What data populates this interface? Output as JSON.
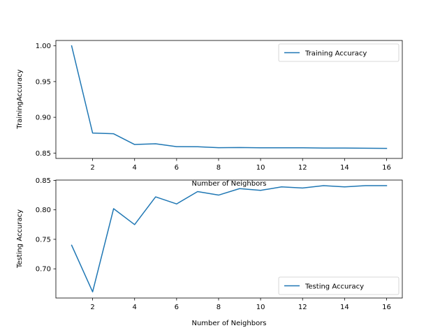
{
  "chart_data": [
    {
      "type": "line",
      "title": "",
      "xlabel": "Number of Neighbors",
      "ylabel": "TrainingAccuracy",
      "xlim": [
        0.25,
        16.75
      ],
      "ylim": [
        0.8425,
        1.0075
      ],
      "x": [
        1,
        2,
        3,
        4,
        5,
        6,
        7,
        8,
        9,
        10,
        11,
        12,
        13,
        14,
        15,
        16
      ],
      "xticks": [
        2,
        4,
        6,
        8,
        10,
        12,
        14,
        16
      ],
      "yticks": [
        0.85,
        0.9,
        0.95,
        1.0
      ],
      "ytick_labels": [
        "0.85",
        "0.90",
        "0.95",
        "1.00"
      ],
      "series": [
        {
          "name": "Training Accuracy",
          "color": "#1f77b4",
          "values": [
            1.0,
            0.878,
            0.877,
            0.862,
            0.863,
            0.859,
            0.8588,
            0.8575,
            0.8578,
            0.8574,
            0.8574,
            0.8574,
            0.857,
            0.857,
            0.8568,
            0.8566
          ]
        }
      ],
      "legend_position": "upper right",
      "grid": false
    },
    {
      "type": "line",
      "title": "",
      "xlabel": "Number of Neighbors",
      "ylabel": "Testing Accuracy",
      "xlim": [
        0.25,
        16.75
      ],
      "ylim": [
        0.6505,
        0.8505
      ],
      "x": [
        1,
        2,
        3,
        4,
        5,
        6,
        7,
        8,
        9,
        10,
        11,
        12,
        13,
        14,
        15,
        16
      ],
      "xticks": [
        2,
        4,
        6,
        8,
        10,
        12,
        14,
        16
      ],
      "yticks": [
        0.7,
        0.75,
        0.8,
        0.85
      ],
      "ytick_labels": [
        "0.70",
        "0.75",
        "0.80",
        "0.85"
      ],
      "series": [
        {
          "name": "Testing Accuracy",
          "color": "#1f77b4",
          "values": [
            0.74,
            0.661,
            0.802,
            0.775,
            0.822,
            0.81,
            0.831,
            0.825,
            0.836,
            0.833,
            0.839,
            0.837,
            0.841,
            0.839,
            0.841,
            0.841
          ]
        }
      ],
      "legend_position": "lower right",
      "grid": false
    }
  ]
}
